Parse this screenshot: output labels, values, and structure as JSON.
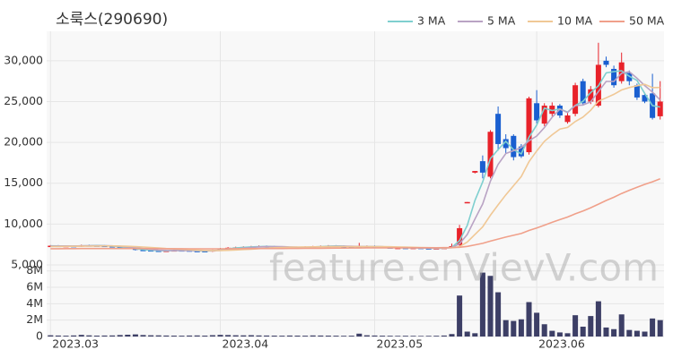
{
  "chart_data": {
    "type": "candlestick",
    "title": "소룩스(290690)",
    "watermark": "feature.enVievV.com",
    "up_color": "#e8222a",
    "down_color": "#1a5fd0",
    "grid": true,
    "legend": "top-right",
    "xlim": [
      -0.5,
      79.5
    ],
    "xticks": [
      {
        "value": 0,
        "label": "2023.03"
      },
      {
        "value": 22,
        "label": "2023.04"
      },
      {
        "value": 42,
        "label": "2023.05"
      },
      {
        "value": 63,
        "label": "2023.06"
      }
    ],
    "ylim": [
      5000,
      33600
    ],
    "yticks": [
      {
        "value": 5000,
        "label": "5,000"
      },
      {
        "value": 10000,
        "label": "10,000"
      },
      {
        "value": 15000,
        "label": "15,000"
      },
      {
        "value": 20000,
        "label": "20,000"
      },
      {
        "value": 25000,
        "label": "25,000"
      },
      {
        "value": 30000,
        "label": "30,000"
      }
    ],
    "open": [
      7300,
      7350,
      7300,
      7320,
      7280,
      7400,
      7380,
      7350,
      7300,
      7250,
      7100,
      7000,
      6850,
      6800,
      6750,
      6700,
      6750,
      6800,
      6780,
      6720,
      6700,
      6680,
      6800,
      7000,
      7100,
      7150,
      7200,
      7250,
      7300,
      7250,
      7200,
      7150,
      7100,
      7150,
      7200,
      7250,
      7300,
      7350,
      7300,
      7250,
      7200,
      7250,
      7300,
      7200,
      7150,
      7100,
      7100,
      7050,
      7100,
      7050,
      7000,
      7050,
      7100,
      7400,
      12600,
      16300,
      17700,
      15800,
      23500,
      20400,
      20800,
      19500,
      18800,
      24800,
      22300,
      23500,
      24500,
      22500,
      23500,
      27500,
      25000,
      24500,
      30000,
      29000,
      27500,
      28500,
      27000,
      25800,
      26000,
      23200
    ],
    "high": [
      7430,
      7430,
      7400,
      7400,
      7480,
      7480,
      7460,
      7430,
      7380,
      7330,
      7180,
      7080,
      6930,
      6880,
      6830,
      6830,
      6880,
      6880,
      6860,
      6800,
      6780,
      6880,
      7080,
      7180,
      7230,
      7280,
      7330,
      7380,
      7380,
      7330,
      7280,
      7230,
      7230,
      7280,
      7330,
      7380,
      7430,
      7430,
      7380,
      7330,
      7700,
      7380,
      7380,
      7280,
      7230,
      7180,
      7180,
      7180,
      7180,
      7130,
      7130,
      7180,
      7600,
      9900,
      12700,
      16500,
      18400,
      21500,
      24400,
      21000,
      21000,
      19800,
      25600,
      26400,
      24800,
      24900,
      24700,
      23600,
      27300,
      27800,
      26900,
      32200,
      30500,
      29400,
      31000,
      28800,
      27200,
      26000,
      28400,
      27500
    ],
    "low": [
      7220,
      7220,
      7220,
      7200,
      7200,
      7300,
      7270,
      7220,
      7170,
      7020,
      6920,
      6770,
      6720,
      6670,
      6620,
      6620,
      6670,
      6700,
      6640,
      6620,
      6600,
      6600,
      6720,
      6920,
      7020,
      7070,
      7120,
      7170,
      7170,
      7120,
      7070,
      7020,
      7020,
      7070,
      7120,
      7170,
      7220,
      7220,
      7170,
      7120,
      7120,
      7170,
      7120,
      7070,
      7020,
      7020,
      6970,
      6970,
      6970,
      6920,
      6920,
      6970,
      7050,
      7350,
      12600,
      16200,
      15600,
      15600,
      19000,
      18600,
      17800,
      18100,
      18500,
      22300,
      22000,
      23200,
      23000,
      22300,
      23200,
      24500,
      24700,
      24300,
      29200,
      26700,
      27200,
      27000,
      25200,
      24800,
      22800,
      22800
    ],
    "close": [
      7350,
      7300,
      7320,
      7280,
      7400,
      7380,
      7350,
      7300,
      7250,
      7100,
      7000,
      6850,
      6800,
      6750,
      6700,
      6750,
      6800,
      6780,
      6720,
      6700,
      6680,
      6800,
      7000,
      7100,
      7150,
      7200,
      7250,
      7300,
      7250,
      7200,
      7150,
      7100,
      7150,
      7200,
      7250,
      7300,
      7350,
      7300,
      7250,
      7200,
      7250,
      7300,
      7200,
      7150,
      7100,
      7100,
      7050,
      7100,
      7050,
      7000,
      7050,
      7100,
      7300,
      9500,
      12700,
      16500,
      16300,
      21300,
      19800,
      19300,
      18200,
      18300,
      25400,
      22700,
      24500,
      24500,
      23300,
      23300,
      27000,
      24800,
      26500,
      29500,
      29500,
      27000,
      29800,
      27500,
      25500,
      25000,
      23000,
      25000
    ],
    "series": [
      {
        "name": "3 MA",
        "color": "#7fcfcf",
        "values": [
          7330,
          7320,
          7320,
          7300,
          7330,
          7350,
          7380,
          7340,
          7300,
          7220,
          7120,
          6980,
          6880,
          6800,
          6750,
          6730,
          6750,
          6780,
          6770,
          6730,
          6700,
          6730,
          6830,
          6970,
          7080,
          7150,
          7200,
          7250,
          7270,
          7250,
          7200,
          7150,
          7130,
          7150,
          7200,
          7250,
          7300,
          7320,
          7300,
          7250,
          7230,
          7250,
          7250,
          7220,
          7150,
          7120,
          7080,
          7080,
          7070,
          7050,
          7030,
          7050,
          7150,
          7970,
          9830,
          12900,
          15170,
          18030,
          19130,
          20130,
          19100,
          18600,
          20630,
          22130,
          24200,
          23900,
          24100,
          23700,
          24530,
          25030,
          26100,
          26930,
          28500,
          28670,
          28770,
          28100,
          27600,
          26000,
          24500,
          24330
        ]
      },
      {
        "name": "5 MA",
        "color": "#b9a3c4",
        "values": [
          7300,
          7310,
          7320,
          7310,
          7330,
          7340,
          7350,
          7350,
          7330,
          7280,
          7200,
          7100,
          7000,
          6900,
          6820,
          6770,
          6760,
          6760,
          6760,
          6750,
          6740,
          6740,
          6780,
          6860,
          6960,
          7050,
          7140,
          7200,
          7230,
          7240,
          7230,
          7200,
          7170,
          7160,
          7170,
          7200,
          7240,
          7280,
          7290,
          7280,
          7260,
          7250,
          7240,
          7220,
          7190,
          7150,
          7110,
          7090,
          7070,
          7060,
          7050,
          7060,
          7120,
          7590,
          8730,
          10620,
          12460,
          15260,
          17320,
          18640,
          18980,
          19380,
          20200,
          20780,
          21820,
          23080,
          24080,
          23660,
          24520,
          24580,
          24980,
          26220,
          27460,
          27460,
          28460,
          28660,
          27860,
          26960,
          26160,
          25200
        ]
      },
      {
        "name": "10 MA",
        "color": "#f0c896",
        "values": [
          7250,
          7260,
          7270,
          7280,
          7290,
          7300,
          7310,
          7320,
          7320,
          7310,
          7280,
          7240,
          7190,
          7130,
          7070,
          7010,
          6960,
          6910,
          6860,
          6820,
          6780,
          6760,
          6760,
          6790,
          6830,
          6880,
          6930,
          6990,
          7050,
          7100,
          7140,
          7170,
          7190,
          7200,
          7210,
          7220,
          7230,
          7240,
          7250,
          7250,
          7250,
          7250,
          7250,
          7240,
          7220,
          7200,
          7180,
          7160,
          7140,
          7120,
          7100,
          7090,
          7100,
          7235,
          7795,
          8735,
          9660,
          11080,
          12355,
          13585,
          14700,
          15820,
          17630,
          18950,
          20130,
          20930,
          21630,
          21830,
          22550,
          23100,
          23930,
          25050,
          25460,
          25890,
          26420,
          26720,
          26940,
          27110,
          26710,
          26730
        ]
      },
      {
        "name": "50 MA",
        "color": "#f0a08a",
        "values": [
          6980,
          6980,
          6990,
          6990,
          7000,
          7000,
          7000,
          7010,
          7010,
          7010,
          7010,
          7000,
          7000,
          6990,
          6990,
          6980,
          6980,
          6980,
          6970,
          6970,
          6970,
          6970,
          6970,
          6980,
          6980,
          6990,
          6990,
          7000,
          7000,
          7010,
          7010,
          7020,
          7020,
          7030,
          7040,
          7040,
          7050,
          7060,
          7060,
          7070,
          7070,
          7080,
          7080,
          7080,
          7090,
          7090,
          7090,
          7100,
          7100,
          7100,
          7100,
          7110,
          7110,
          7160,
          7270,
          7460,
          7640,
          7920,
          8170,
          8410,
          8630,
          8850,
          9220,
          9530,
          9870,
          10220,
          10540,
          10860,
          11260,
          11610,
          12000,
          12440,
          12890,
          13280,
          13740,
          14140,
          14510,
          14860,
          15180,
          15540
        ]
      }
    ],
    "volume": {
      "color": "#3d3f66",
      "ylim": [
        0,
        8300000
      ],
      "yticks": [
        0,
        {
          "value": 2000000,
          "label": "2M"
        },
        {
          "value": 4000000,
          "label": "4M"
        },
        {
          "value": 6000000,
          "label": "6M"
        },
        {
          "value": 8000000,
          "label": "8M"
        }
      ],
      "values": [
        150000,
        120000,
        100000,
        130000,
        200000,
        140000,
        110000,
        120000,
        130000,
        180000,
        220000,
        260000,
        180000,
        150000,
        140000,
        120000,
        110000,
        100000,
        120000,
        130000,
        110000,
        160000,
        200000,
        180000,
        150000,
        140000,
        160000,
        130000,
        120000,
        110000,
        100000,
        120000,
        110000,
        100000,
        130000,
        120000,
        110000,
        100000,
        90000,
        100000,
        350000,
        150000,
        120000,
        100000,
        90000,
        80000,
        90000,
        80000,
        70000,
        80000,
        90000,
        120000,
        300000,
        5000000,
        600000,
        400000,
        7800000,
        7400000,
        5400000,
        2000000,
        1900000,
        2100000,
        4200000,
        2900000,
        1500000,
        700000,
        500000,
        400000,
        2600000,
        1200000,
        2500000,
        4300000,
        1100000,
        900000,
        2700000,
        800000,
        700000,
        600000,
        2200000,
        2000000
      ]
    }
  }
}
